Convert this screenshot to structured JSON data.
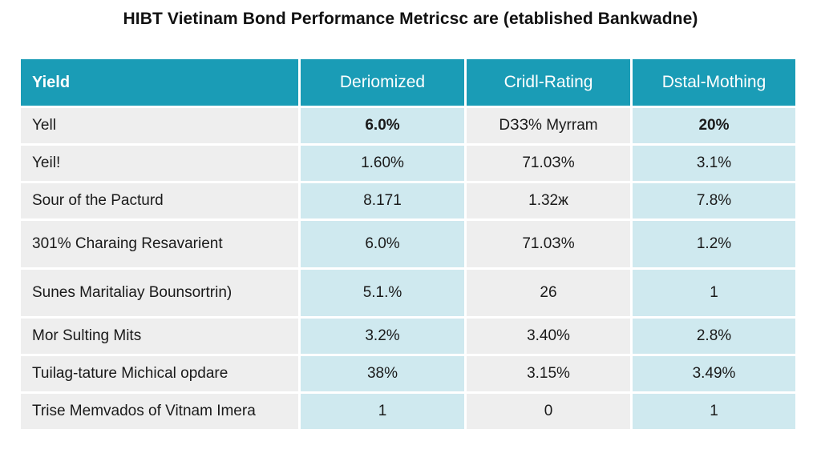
{
  "title": "HIBT Vietinam Bond Performance Metricsc are (etablished Bankwadne)",
  "table": {
    "headers": [
      "Yield",
      "Deriomized",
      "Cridl-Rating",
      "Dstal-Mothing"
    ],
    "rows": [
      {
        "label": "Yell",
        "values": [
          "6.0%",
          "DЗЗ% Myrram",
          "20%"
        ]
      },
      {
        "label": "Yeil!",
        "values": [
          "1.60%",
          "71.0З%",
          "3.1%"
        ]
      },
      {
        "label": "Sour of the Pacturd",
        "values": [
          "8.171",
          "1.32ж",
          "7.8%"
        ]
      },
      {
        "label": "301% Charaing Resavarient",
        "values": [
          "6.0%",
          "71.0З%",
          "1.2%"
        ]
      },
      {
        "label": "Sunes Maritaliay Bounsortrin)",
        "values": [
          "5.1.%",
          "26",
          "1"
        ]
      },
      {
        "label": "Mor Sulting Mits",
        "values": [
          "3.2%",
          "3.40%",
          "2.8%"
        ]
      },
      {
        "label": "Tuilag-tature Michical opdare",
        "values": [
          "38%",
          "3.15%",
          "3.49%"
        ]
      },
      {
        "label": "Trise Memvados of Vitnam Imera",
        "values": [
          "1",
          "0",
          "1"
        ]
      }
    ]
  }
}
